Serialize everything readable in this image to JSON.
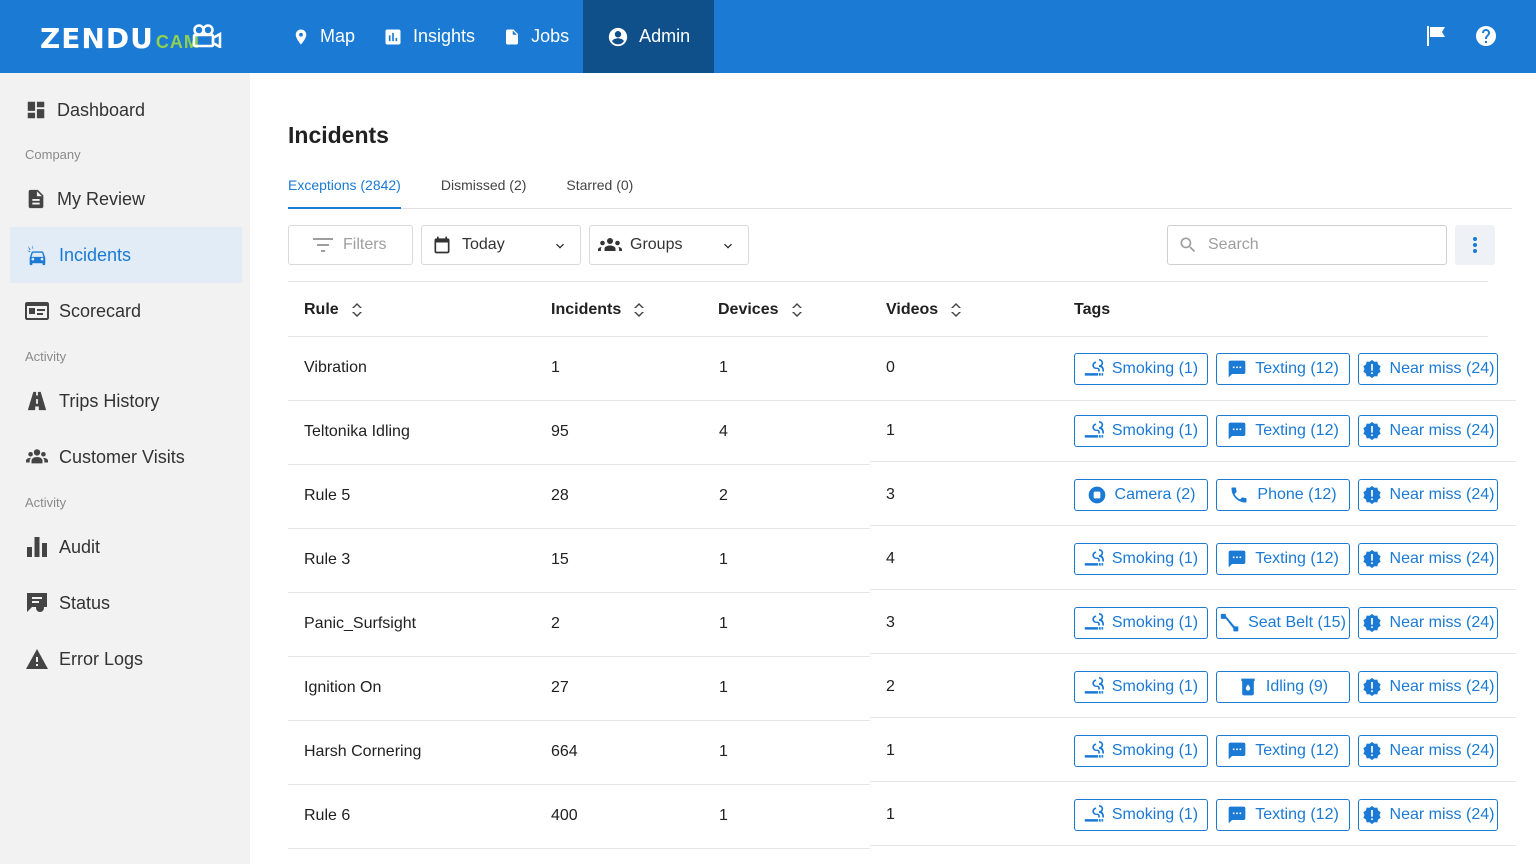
{
  "brand": {
    "main": "ZENDU",
    "sub": "CAM"
  },
  "nav": [
    {
      "label": "Map",
      "icon": "map-pin-icon"
    },
    {
      "label": "Insights",
      "icon": "insights-chart-icon"
    },
    {
      "label": "Jobs",
      "icon": "document-icon"
    },
    {
      "label": "Admin",
      "icon": "user-circle-icon",
      "active": true
    }
  ],
  "top_icons": [
    "flag-icon",
    "help-icon"
  ],
  "sidebar": {
    "items": [
      {
        "label": "Dashboard",
        "icon": "dashboard-icon"
      },
      {
        "label": "My Review",
        "icon": "review-document-icon"
      },
      {
        "label": "Incidents",
        "icon": "car-crash-icon",
        "active": true
      },
      {
        "label": "Scorecard",
        "icon": "id-card-icon"
      },
      {
        "label": "Trips History",
        "icon": "road-icon"
      },
      {
        "label": "Customer Visits",
        "icon": "users-icon"
      },
      {
        "label": "Audit",
        "icon": "bar-chart-icon"
      },
      {
        "label": "Status",
        "icon": "status-chat-icon"
      },
      {
        "label": "Error Logs",
        "icon": "warning-icon"
      }
    ],
    "sections": [
      "Company",
      "Activity",
      "Activity"
    ]
  },
  "page": {
    "title": "Incidents",
    "tabs": [
      {
        "label": "Exceptions (2842)",
        "active": true
      },
      {
        "label": "Dismissed (2)"
      },
      {
        "label": "Starred (0)"
      }
    ]
  },
  "toolbar": {
    "filters_label": "Filters",
    "date_value": "Today",
    "groups_value": "Groups",
    "search_placeholder": "Search"
  },
  "table": {
    "columns": [
      "Rule",
      "Incidents",
      "Devices",
      "Videos",
      "Tags"
    ],
    "rows": [
      {
        "rule": "Vibration",
        "incidents": "1",
        "devices": "1",
        "videos": "0",
        "tags": [
          {
            "label": "Smoking (1)",
            "icon": "smoking-icon"
          },
          {
            "label": "Texting (12)",
            "icon": "message-icon"
          },
          {
            "label": "Near miss (24)",
            "icon": "alert-badge-icon"
          }
        ]
      },
      {
        "rule": "Teltonika Idling",
        "incidents": "95",
        "devices": "4",
        "videos": "1",
        "tags": [
          {
            "label": "Smoking (1)",
            "icon": "smoking-icon"
          },
          {
            "label": "Texting (12)",
            "icon": "message-icon"
          },
          {
            "label": "Near miss (24)",
            "icon": "alert-badge-icon"
          }
        ]
      },
      {
        "rule": "Rule 5",
        "incidents": "28",
        "devices": "2",
        "videos": "3",
        "tags": [
          {
            "label": "Camera (2)",
            "icon": "camera-stop-icon"
          },
          {
            "label": "Phone (12)",
            "icon": "phone-icon"
          },
          {
            "label": "Near miss (24)",
            "icon": "alert-badge-icon"
          }
        ]
      },
      {
        "rule": "Rule 3",
        "incidents": "15",
        "devices": "1",
        "videos": "4",
        "tags": [
          {
            "label": "Smoking (1)",
            "icon": "smoking-icon"
          },
          {
            "label": "Texting (12)",
            "icon": "message-icon"
          },
          {
            "label": "Near miss (24)",
            "icon": "alert-badge-icon"
          }
        ]
      },
      {
        "rule": "Panic_Surfsight",
        "incidents": "2",
        "devices": "1",
        "videos": "3",
        "tags": [
          {
            "label": "Smoking (1)",
            "icon": "smoking-icon"
          },
          {
            "label": "Seat Belt (15)",
            "icon": "seat-belt-icon"
          },
          {
            "label": "Near miss (24)",
            "icon": "alert-badge-icon"
          }
        ]
      },
      {
        "rule": "Ignition On",
        "incidents": "27",
        "devices": "1",
        "videos": "2",
        "tags": [
          {
            "label": "Smoking (1)",
            "icon": "smoking-icon"
          },
          {
            "label": "Idling (9)",
            "icon": "idling-icon"
          },
          {
            "label": "Near miss (24)",
            "icon": "alert-badge-icon"
          }
        ]
      },
      {
        "rule": "Harsh Cornering",
        "incidents": "664",
        "devices": "1",
        "videos": "1",
        "tags": [
          {
            "label": "Smoking (1)",
            "icon": "smoking-icon"
          },
          {
            "label": "Texting (12)",
            "icon": "message-icon"
          },
          {
            "label": "Near miss (24)",
            "icon": "alert-badge-icon"
          }
        ]
      },
      {
        "rule": "Rule 6",
        "incidents": "400",
        "devices": "1",
        "videos": "1",
        "tags": [
          {
            "label": "Smoking (1)",
            "icon": "smoking-icon"
          },
          {
            "label": "Texting (12)",
            "icon": "message-icon"
          },
          {
            "label": "Near miss (24)",
            "icon": "alert-badge-icon"
          }
        ]
      }
    ]
  },
  "colors": {
    "brand_blue": "#1a7ad4",
    "nav_active": "#0f4f8a",
    "brand_green": "#8fd14f",
    "sidebar_bg": "#f2f2f2",
    "sidebar_active_bg": "#e2ecf6"
  }
}
